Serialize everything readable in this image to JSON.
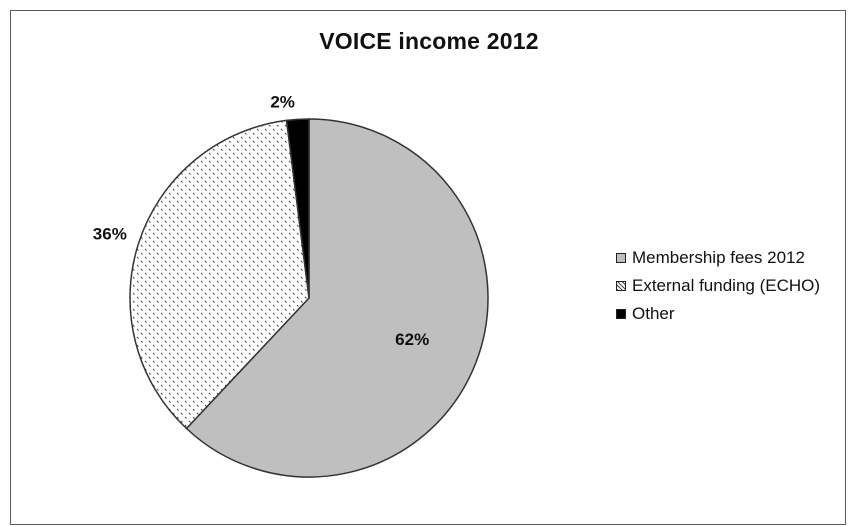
{
  "chart_data": {
    "type": "pie",
    "title": "VOICE income 2012",
    "categories": [
      "Membership fees 2012",
      "External funding (ECHO)",
      "Other"
    ],
    "values": [
      62,
      36,
      2
    ],
    "data_labels": [
      "62%",
      "36%",
      "2%"
    ],
    "legend_position": "right",
    "colors": {
      "membership": "#bfbfbf",
      "external": "#ffffff",
      "other": "#000000",
      "outline": "#333333"
    },
    "patterns": [
      "solid",
      "dotted",
      "solid"
    ]
  }
}
